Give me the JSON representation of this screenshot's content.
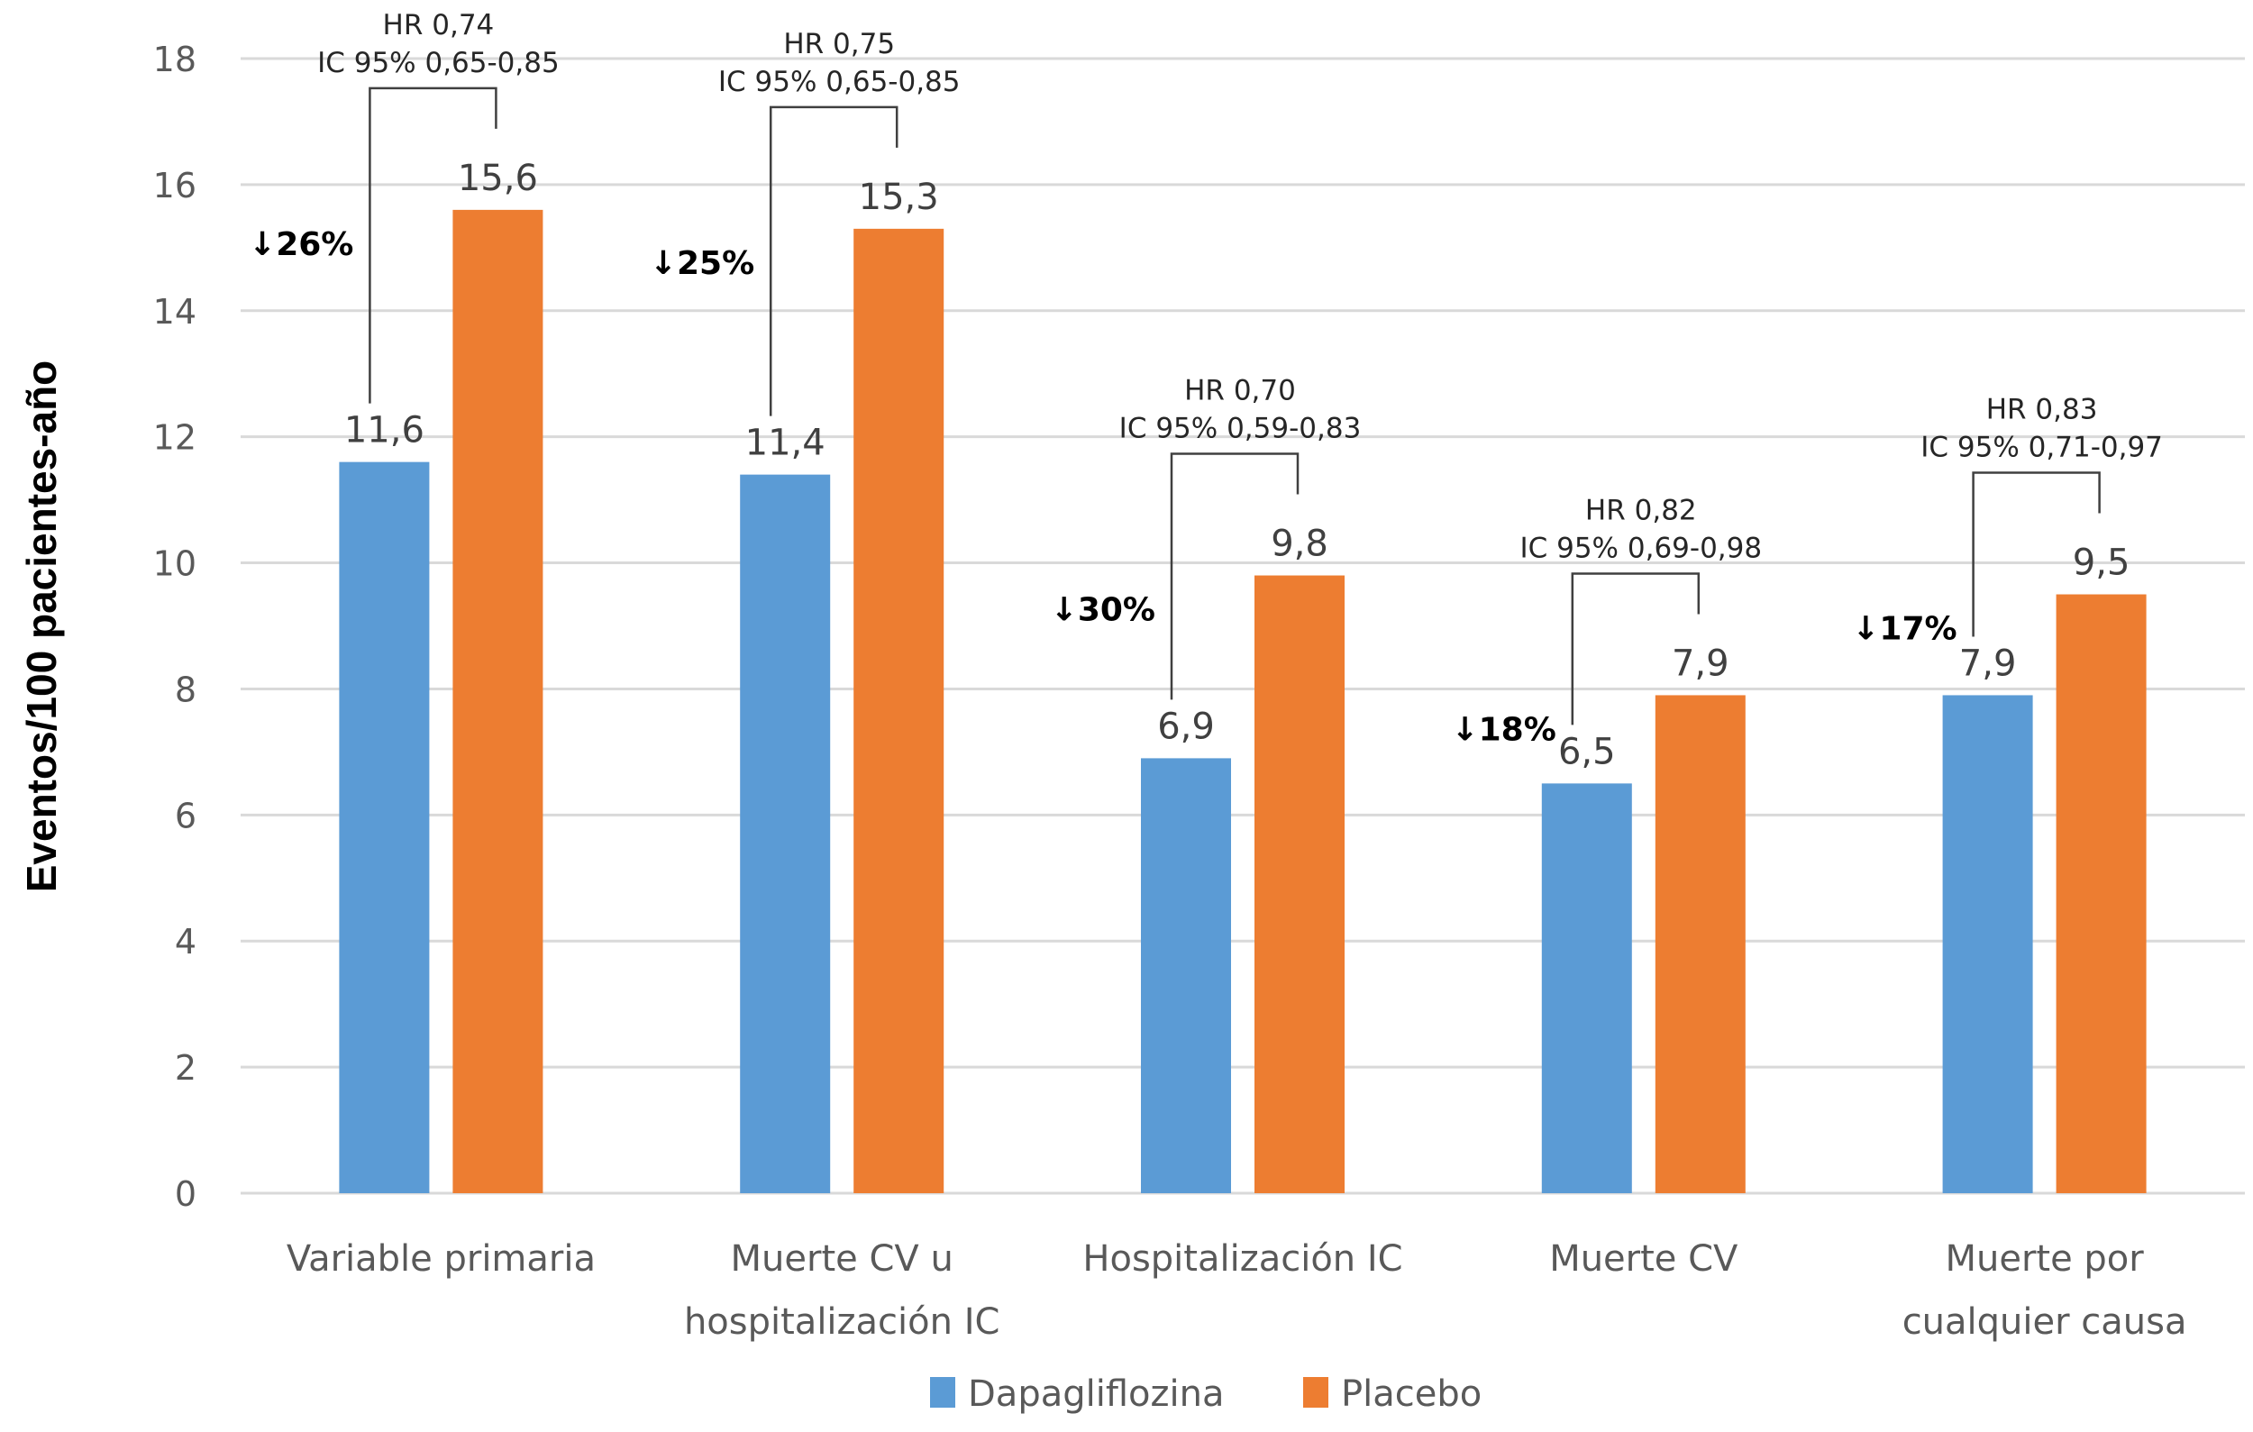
{
  "chart_data": {
    "type": "bar",
    "title": "",
    "xlabel": "",
    "ylabel": "Eventos/100 pacientes-año",
    "ylim": [
      0,
      18
    ],
    "yticks": [
      0,
      2,
      4,
      6,
      8,
      10,
      12,
      14,
      16,
      18
    ],
    "grid": true,
    "legend_position": "bottom",
    "categories": [
      [
        "Variable primaria"
      ],
      [
        "Muerte CV u",
        "hospitalización IC"
      ],
      [
        "Hospitalización IC"
      ],
      [
        "Muerte CV"
      ],
      [
        "Muerte por",
        "cualquier causa"
      ]
    ],
    "series": [
      {
        "name": "Dapagliflozina",
        "color": "#5B9BD5",
        "values": [
          11.6,
          11.4,
          6.9,
          6.5,
          7.9
        ],
        "labels": [
          "11,6",
          "11,4",
          "6,9",
          "6,5",
          "7,9"
        ]
      },
      {
        "name": "Placebo",
        "color": "#ED7D31",
        "values": [
          15.6,
          15.3,
          9.8,
          7.9,
          9.5
        ],
        "labels": [
          "15,6",
          "15,3",
          "9,8",
          "7,9",
          "9,5"
        ]
      }
    ],
    "annotations": [
      {
        "hr": "HR 0,74",
        "ci": "IC 95% 0,65-0,85",
        "reduction": "↓26%"
      },
      {
        "hr": "HR 0,75",
        "ci": "IC 95% 0,65-0,85",
        "reduction": "↓25%"
      },
      {
        "hr": "HR 0,70",
        "ci": "IC 95% 0,59-0,83",
        "reduction": "↓30%"
      },
      {
        "hr": "HR 0,82",
        "ci": "IC 95% 0,69-0,98",
        "reduction": "↓18%"
      },
      {
        "hr": "HR 0,83",
        "ci": "IC 95% 0,71-0,97",
        "reduction": "↓17%"
      }
    ]
  }
}
